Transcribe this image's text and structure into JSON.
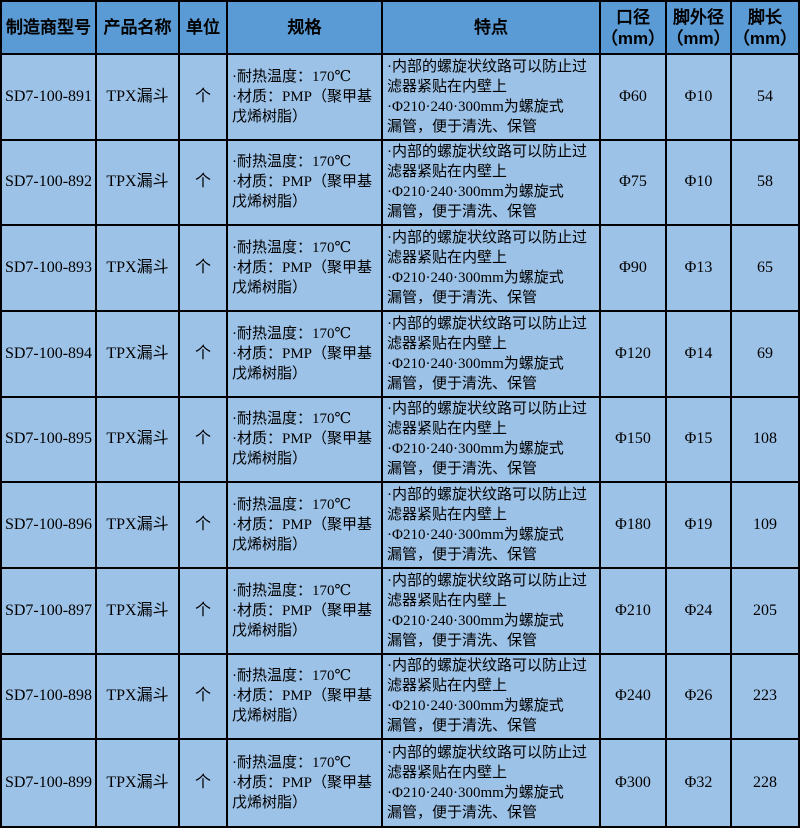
{
  "colors": {
    "header_bg": "#5b9bd5",
    "row_bg": "#9dc2e7",
    "border": "#000000",
    "text": "#000000"
  },
  "table": {
    "columns": [
      {
        "key": "model",
        "label": "制造商型号"
      },
      {
        "key": "product",
        "label": "产品名称"
      },
      {
        "key": "unit",
        "label": "单位"
      },
      {
        "key": "spec",
        "label": "规格"
      },
      {
        "key": "features",
        "label": "特点"
      },
      {
        "key": "caliber",
        "label": "口径\n（mm）"
      },
      {
        "key": "foot_od",
        "label": "脚外径\n（mm）"
      },
      {
        "key": "foot_len",
        "label": "脚长\n（mm）"
      }
    ],
    "rows": [
      {
        "model": "SD7-100-891",
        "product": "TPX漏斗",
        "unit": "个",
        "spec": "·耐热温度：170℃\n·材质：PMP（聚甲基\n戊烯树脂）",
        "features": "·内部的螺旋状纹路可以防止过\n滤器紧贴在内壁上\n·Φ210·240·300mm为螺旋式\n漏管，便于清洗、保管",
        "caliber": "Φ60",
        "foot_od": "Φ10",
        "foot_len": "54"
      },
      {
        "model": "SD7-100-892",
        "product": "TPX漏斗",
        "unit": "个",
        "spec": "·耐热温度：170℃\n·材质：PMP（聚甲基\n戊烯树脂）",
        "features": "·内部的螺旋状纹路可以防止过\n滤器紧贴在内壁上\n·Φ210·240·300mm为螺旋式\n漏管，便于清洗、保管",
        "caliber": "Φ75",
        "foot_od": "Φ10",
        "foot_len": "58"
      },
      {
        "model": "SD7-100-893",
        "product": "TPX漏斗",
        "unit": "个",
        "spec": "·耐热温度：170℃\n·材质：PMP（聚甲基\n戊烯树脂）",
        "features": "·内部的螺旋状纹路可以防止过\n滤器紧贴在内壁上\n·Φ210·240·300mm为螺旋式\n漏管，便于清洗、保管",
        "caliber": "Φ90",
        "foot_od": "Φ13",
        "foot_len": "65"
      },
      {
        "model": "SD7-100-894",
        "product": "TPX漏斗",
        "unit": "个",
        "spec": "·耐热温度：170℃\n·材质：PMP（聚甲基\n戊烯树脂）",
        "features": "·内部的螺旋状纹路可以防止过\n滤器紧贴在内壁上\n·Φ210·240·300mm为螺旋式\n漏管，便于清洗、保管",
        "caliber": "Φ120",
        "foot_od": "Φ14",
        "foot_len": "69"
      },
      {
        "model": "SD7-100-895",
        "product": "TPX漏斗",
        "unit": "个",
        "spec": "·耐热温度：170℃\n·材质：PMP（聚甲基\n戊烯树脂）",
        "features": "·内部的螺旋状纹路可以防止过\n滤器紧贴在内壁上\n·Φ210·240·300mm为螺旋式\n漏管，便于清洗、保管",
        "caliber": "Φ150",
        "foot_od": "Φ15",
        "foot_len": "108"
      },
      {
        "model": "SD7-100-896",
        "product": "TPX漏斗",
        "unit": "个",
        "spec": "·耐热温度：170℃\n·材质：PMP（聚甲基\n戊烯树脂）",
        "features": "·内部的螺旋状纹路可以防止过\n滤器紧贴在内壁上\n·Φ210·240·300mm为螺旋式\n漏管，便于清洗、保管",
        "caliber": "Φ180",
        "foot_od": "Φ19",
        "foot_len": "109"
      },
      {
        "model": "SD7-100-897",
        "product": "TPX漏斗",
        "unit": "个",
        "spec": "·耐热温度：170℃\n·材质：PMP（聚甲基\n戊烯树脂）",
        "features": "·内部的螺旋状纹路可以防止过\n滤器紧贴在内壁上\n·Φ210·240·300mm为螺旋式\n漏管，便于清洗、保管",
        "caliber": "Φ210",
        "foot_od": "Φ24",
        "foot_len": "205"
      },
      {
        "model": "SD7-100-898",
        "product": "TPX漏斗",
        "unit": "个",
        "spec": "·耐热温度：170℃\n·材质：PMP（聚甲基\n戊烯树脂）",
        "features": "·内部的螺旋状纹路可以防止过\n滤器紧贴在内壁上\n·Φ210·240·300mm为螺旋式\n漏管，便于清洗、保管",
        "caliber": "Φ240",
        "foot_od": "Φ26",
        "foot_len": "223"
      },
      {
        "model": "SD7-100-899",
        "product": "TPX漏斗",
        "unit": "个",
        "spec": "·耐热温度：170℃\n·材质：PMP（聚甲基\n戊烯树脂）",
        "features": "·内部的螺旋状纹路可以防止过\n滤器紧贴在内壁上\n·Φ210·240·300mm为螺旋式\n漏管，便于清洗、保管",
        "caliber": "Φ300",
        "foot_od": "Φ32",
        "foot_len": "228"
      }
    ]
  }
}
